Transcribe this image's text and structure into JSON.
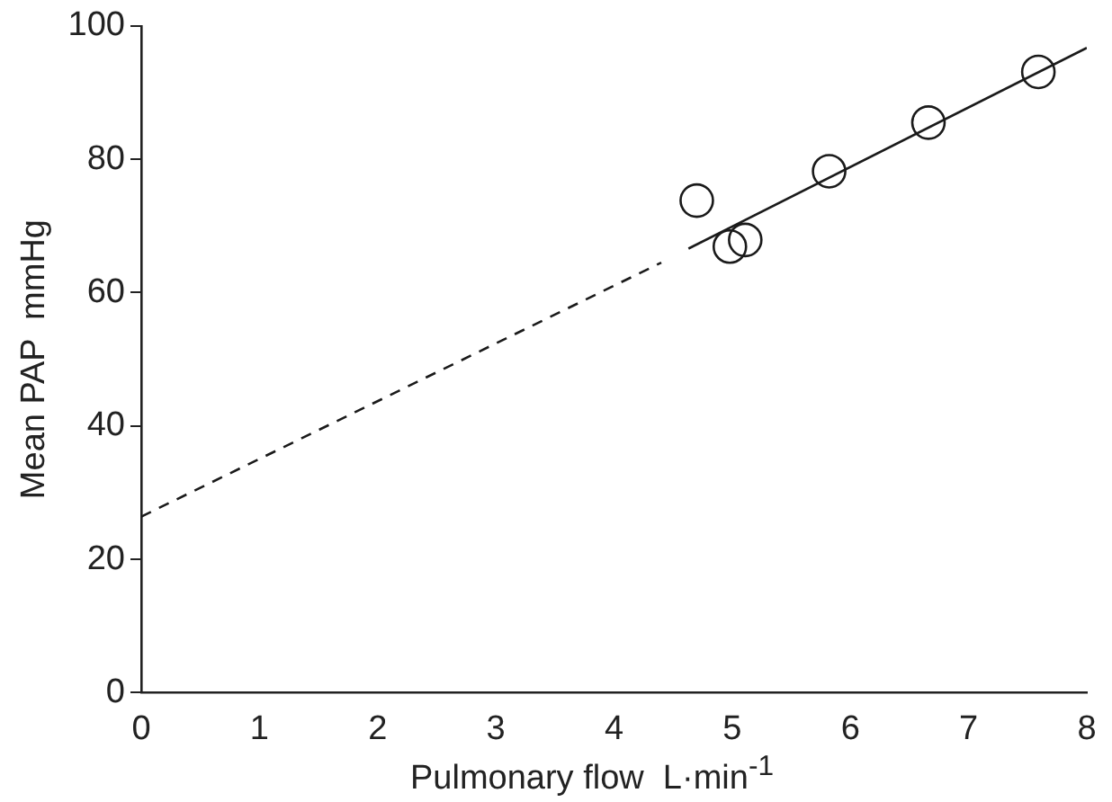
{
  "chart_data": {
    "type": "scatter",
    "xlabel": "Pulmonary flow  L·min$^{-1}$",
    "ylabel": "Mean PAP  mmHg",
    "xlim": [
      0,
      8
    ],
    "ylim": [
      0,
      100
    ],
    "xticks": [
      0,
      1,
      2,
      3,
      4,
      5,
      6,
      7,
      8
    ],
    "yticks": [
      0,
      20,
      40,
      60,
      80,
      100
    ],
    "grid": false,
    "legend": false,
    "marker": "circle",
    "series": [
      {
        "type": "scatter",
        "color": "#1a1a1a",
        "x": [
          4.7,
          4.98,
          5.11,
          5.82,
          6.66,
          7.59
        ],
        "values": [
          73.8,
          66.9,
          67.9,
          78.2,
          85.5,
          93.1
        ]
      },
      {
        "type": "line",
        "color": "#1a1a1a",
        "line_style": "solid",
        "marker": "none",
        "x": [
          4.63,
          8
        ],
        "values": [
          66.6,
          96.7
        ]
      },
      {
        "type": "line",
        "color": "#1a1a1a",
        "line_style": "dashed",
        "marker": "none",
        "x": [
          0,
          4.4
        ],
        "values": [
          26.4,
          64.5
        ]
      }
    ]
  }
}
